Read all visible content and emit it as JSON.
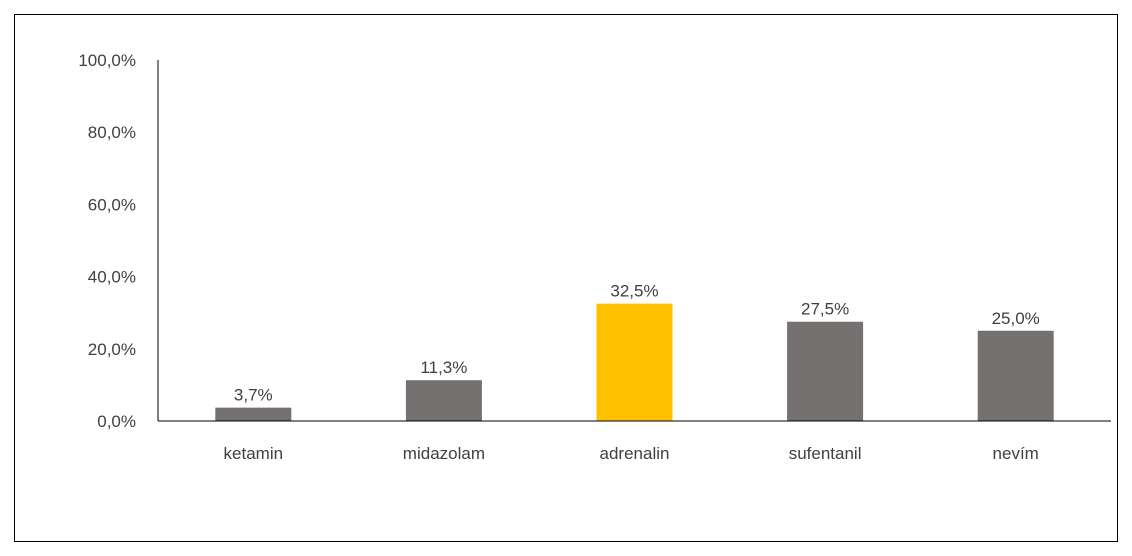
{
  "chart_data": {
    "type": "bar",
    "categories": [
      "ketamin",
      "midazolam",
      "adrenalin",
      "sufentanil",
      "nevím"
    ],
    "values": [
      3.7,
      11.3,
      32.5,
      27.5,
      25.0
    ],
    "data_labels": [
      "3,7%",
      "11,3%",
      "32,5%",
      "27,5%",
      "25,0%"
    ],
    "ylim": [
      0,
      100
    ],
    "yticks": [
      0,
      20,
      40,
      60,
      80,
      100
    ],
    "ytick_labels": [
      "0,0%",
      "20,0%",
      "40,0%",
      "60,0%",
      "80,0%",
      "100,0%"
    ],
    "title": "",
    "xlabel": "",
    "ylabel": "",
    "grid": false,
    "colors": {
      "default_bar": "#767171",
      "highlight_bar": "#FFC000",
      "axis": "#000000",
      "text": "#404040"
    },
    "highlight_category": "adrenalin"
  }
}
